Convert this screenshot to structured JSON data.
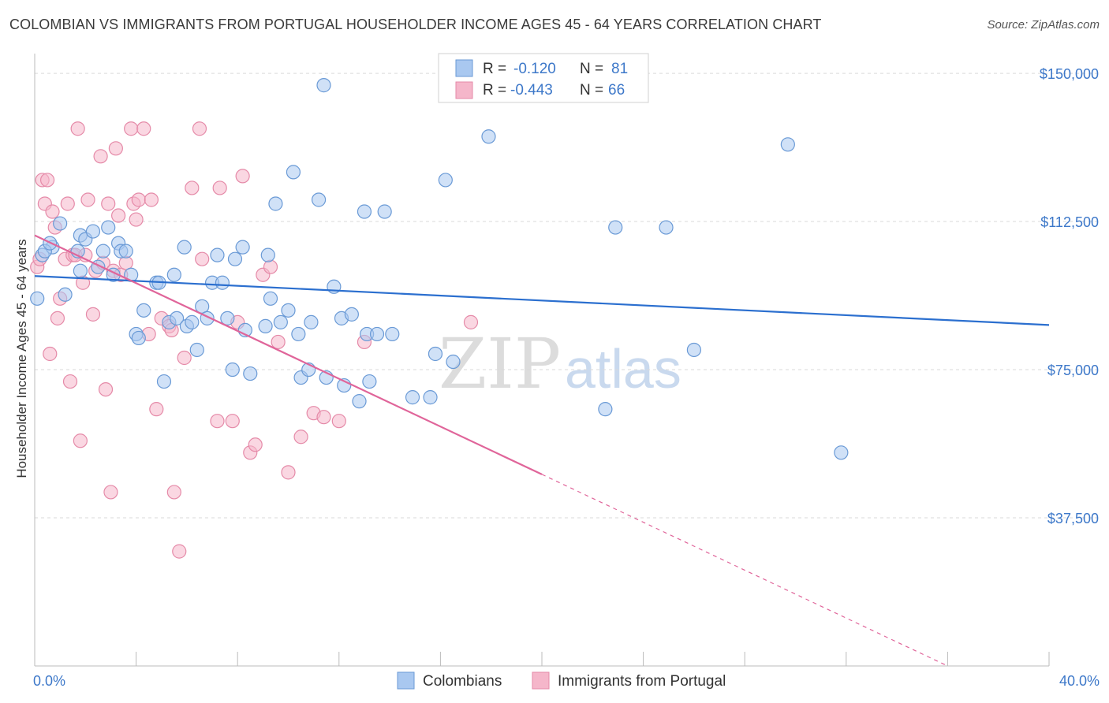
{
  "title": "COLOMBIAN VS IMMIGRANTS FROM PORTUGAL HOUSEHOLDER INCOME AGES 45 - 64 YEARS CORRELATION CHART",
  "source": "Source: ZipAtlas.com",
  "colors": {
    "blue_fill": "#a9c8f0",
    "blue_stroke": "#6a9ad6",
    "blue_line": "#2b6fcf",
    "pink_fill": "#f5b6ca",
    "pink_stroke": "#e58aa8",
    "pink_line": "#e0659a",
    "grid": "#d9d9d9",
    "accent_text": "#3d78c9"
  },
  "legend_top": {
    "rows": [
      {
        "r_label": "R =",
        "r_value": "-0.120",
        "n_label": "N =",
        "n_value": "81"
      },
      {
        "r_label": "R =",
        "r_value": "-0.443",
        "n_label": "N =",
        "n_value": "66"
      }
    ]
  },
  "legend_bottom": {
    "series_a": "Colombians",
    "series_b": "Immigrants from Portugal"
  },
  "watermark": {
    "zip": "ZIP",
    "atlas": "atlas"
  },
  "chart_data": {
    "type": "scatter",
    "title": "COLOMBIAN VS IMMIGRANTS FROM PORTUGAL HOUSEHOLDER INCOME AGES 45 - 64 YEARS CORRELATION CHART",
    "xlabel": "",
    "ylabel": "Householder Income Ages 45 - 64 years",
    "xlim": [
      0,
      40
    ],
    "ylim": [
      0,
      155000
    ],
    "x_tick_labels": [
      "0.0%",
      "40.0%"
    ],
    "y_ticks": [
      37500,
      75000,
      112500,
      150000
    ],
    "y_tick_labels": [
      "$37,500",
      "$75,000",
      "$112,500",
      "$150,000"
    ],
    "grid": true,
    "series": [
      {
        "name": "Colombians",
        "r": -0.12,
        "n": 81,
        "trend": {
          "x_start": 0,
          "y_start": 98700,
          "x_end": 40,
          "y_end": 86300
        },
        "points": [
          [
            0.1,
            93000
          ],
          [
            0.3,
            104000
          ],
          [
            0.7,
            106000
          ],
          [
            1.2,
            94000
          ],
          [
            1.0,
            112000
          ],
          [
            1.8,
            109000
          ],
          [
            1.7,
            105000
          ],
          [
            1.8,
            100000
          ],
          [
            2.0,
            108000
          ],
          [
            2.3,
            110000
          ],
          [
            2.5,
            101000
          ],
          [
            2.7,
            105000
          ],
          [
            2.9,
            111000
          ],
          [
            3.1,
            99000
          ],
          [
            3.3,
            107000
          ],
          [
            3.4,
            105000
          ],
          [
            3.6,
            105000
          ],
          [
            3.8,
            99000
          ],
          [
            4.0,
            84000
          ],
          [
            4.1,
            83000
          ],
          [
            4.3,
            90000
          ],
          [
            4.8,
            97000
          ],
          [
            4.9,
            97000
          ],
          [
            5.1,
            72000
          ],
          [
            5.3,
            87000
          ],
          [
            5.5,
            99000
          ],
          [
            5.6,
            88000
          ],
          [
            5.9,
            106000
          ],
          [
            6.0,
            86000
          ],
          [
            6.2,
            87000
          ],
          [
            6.4,
            80000
          ],
          [
            6.6,
            91000
          ],
          [
            6.8,
            88000
          ],
          [
            7.0,
            97000
          ],
          [
            7.2,
            104000
          ],
          [
            7.4,
            97000
          ],
          [
            7.6,
            88000
          ],
          [
            7.8,
            75000
          ],
          [
            7.9,
            103000
          ],
          [
            8.3,
            85000
          ],
          [
            8.2,
            106000
          ],
          [
            8.5,
            74000
          ],
          [
            9.1,
            86000
          ],
          [
            9.2,
            104000
          ],
          [
            9.3,
            93000
          ],
          [
            9.5,
            117000
          ],
          [
            9.7,
            87000
          ],
          [
            10.0,
            90000
          ],
          [
            10.2,
            125000
          ],
          [
            10.4,
            84000
          ],
          [
            10.5,
            73000
          ],
          [
            10.8,
            75000
          ],
          [
            10.9,
            87000
          ],
          [
            11.2,
            118000
          ],
          [
            11.4,
            147000
          ],
          [
            11.5,
            73000
          ],
          [
            11.8,
            96000
          ],
          [
            12.1,
            88000
          ],
          [
            12.2,
            71000
          ],
          [
            12.5,
            89000
          ],
          [
            12.8,
            67000
          ],
          [
            13.0,
            115000
          ],
          [
            13.1,
            84000
          ],
          [
            13.2,
            72000
          ],
          [
            13.5,
            84000
          ],
          [
            13.8,
            115000
          ],
          [
            14.1,
            84000
          ],
          [
            14.9,
            68000
          ],
          [
            15.6,
            68000
          ],
          [
            15.8,
            79000
          ],
          [
            16.2,
            123000
          ],
          [
            16.5,
            77000
          ],
          [
            17.9,
            134000
          ],
          [
            22.5,
            65000
          ],
          [
            22.9,
            111000
          ],
          [
            24.9,
            111000
          ],
          [
            26.0,
            80000
          ],
          [
            29.7,
            132000
          ],
          [
            31.8,
            54000
          ],
          [
            0.4,
            105000
          ],
          [
            0.6,
            107000
          ]
        ]
      },
      {
        "name": "Immigrants from Portugal",
        "r": -0.443,
        "n": 66,
        "trend": {
          "x_start": 0,
          "y_start": 109000,
          "x_end": 20,
          "y_end": 48500,
          "dashed_to_x": 36,
          "dashed_to_y": 0
        },
        "points": [
          [
            0.1,
            101000
          ],
          [
            0.2,
            103000
          ],
          [
            0.3,
            123000
          ],
          [
            0.4,
            117000
          ],
          [
            0.5,
            123000
          ],
          [
            0.6,
            79000
          ],
          [
            0.7,
            115000
          ],
          [
            0.8,
            111000
          ],
          [
            0.9,
            88000
          ],
          [
            1.0,
            93000
          ],
          [
            1.2,
            103000
          ],
          [
            1.3,
            117000
          ],
          [
            1.4,
            72000
          ],
          [
            1.5,
            104000
          ],
          [
            1.6,
            104000
          ],
          [
            1.7,
            136000
          ],
          [
            1.8,
            57000
          ],
          [
            1.9,
            97000
          ],
          [
            2.0,
            104000
          ],
          [
            2.1,
            118000
          ],
          [
            2.3,
            89000
          ],
          [
            2.4,
            100000
          ],
          [
            2.6,
            129000
          ],
          [
            2.7,
            102000
          ],
          [
            2.8,
            70000
          ],
          [
            2.9,
            117000
          ],
          [
            3.0,
            44000
          ],
          [
            3.1,
            100000
          ],
          [
            3.2,
            131000
          ],
          [
            3.3,
            114000
          ],
          [
            3.4,
            99000
          ],
          [
            3.6,
            102000
          ],
          [
            3.8,
            136000
          ],
          [
            3.9,
            117000
          ],
          [
            4.0,
            113000
          ],
          [
            4.1,
            118000
          ],
          [
            4.3,
            136000
          ],
          [
            4.5,
            84000
          ],
          [
            4.6,
            118000
          ],
          [
            4.8,
            65000
          ],
          [
            5.0,
            88000
          ],
          [
            5.3,
            86000
          ],
          [
            5.4,
            85000
          ],
          [
            5.5,
            44000
          ],
          [
            5.7,
            29000
          ],
          [
            5.9,
            78000
          ],
          [
            6.2,
            121000
          ],
          [
            6.5,
            136000
          ],
          [
            6.6,
            103000
          ],
          [
            7.2,
            62000
          ],
          [
            7.3,
            121000
          ],
          [
            7.8,
            62000
          ],
          [
            8.0,
            87000
          ],
          [
            8.2,
            124000
          ],
          [
            8.5,
            54000
          ],
          [
            8.7,
            56000
          ],
          [
            9.0,
            99000
          ],
          [
            9.3,
            101000
          ],
          [
            9.6,
            82000
          ],
          [
            10.0,
            49000
          ],
          [
            10.5,
            58000
          ],
          [
            11.0,
            64000
          ],
          [
            11.4,
            63000
          ],
          [
            12.0,
            62000
          ],
          [
            13.0,
            82000
          ],
          [
            17.2,
            87000
          ]
        ]
      }
    ]
  }
}
